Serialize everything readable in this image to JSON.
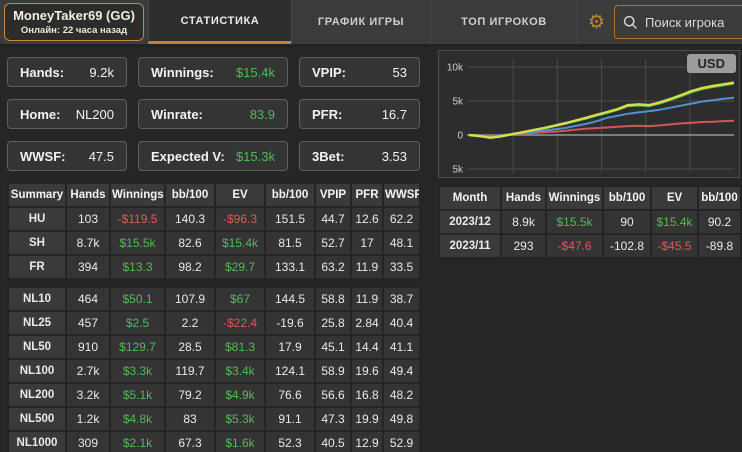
{
  "colors": {
    "accent_orange": "#c8802f",
    "positive_green": "#57b75c",
    "negative_red": "#dd5b5b"
  },
  "header": {
    "player": {
      "name": "MoneyTaker69 (GG)",
      "online": "Онлайн: 22 часа назад"
    },
    "tabs": [
      {
        "label": "СТАТИСТИКА",
        "active": true
      },
      {
        "label": "ГРАФИК ИГРЫ",
        "active": false
      },
      {
        "label": "ТОП ИГРОКОВ",
        "active": false
      }
    ],
    "search_placeholder": "Поиск игрока"
  },
  "stats": [
    {
      "label": "Hands:",
      "value": "9.2k"
    },
    {
      "label": "Winnings:",
      "value": "$15.4k",
      "color": "green"
    },
    {
      "label": "VPIP:",
      "value": "53"
    },
    {
      "label": "Home:",
      "value": "NL200"
    },
    {
      "label": "Winrate:",
      "value": "83.9",
      "color": "green"
    },
    {
      "label": "PFR:",
      "value": "16.7"
    },
    {
      "label": "WWSF:",
      "value": "47.5"
    },
    {
      "label": "Expected V:",
      "value": "$15.3k",
      "color": "green"
    },
    {
      "label": "3Bet:",
      "value": "3.53"
    }
  ],
  "summary_table": {
    "headers": [
      "Summary",
      "Hands",
      "Winnings",
      "bb/100",
      "EV",
      "bb/100",
      "VPIP",
      "PFR",
      "WWSF"
    ],
    "rows": [
      {
        "cells": [
          "HU",
          "103",
          "-$119.5",
          "140.3",
          "-$96.3",
          "151.5",
          "44.7",
          "12.6",
          "62.2"
        ]
      },
      {
        "cells": [
          "SH",
          "8.7k",
          "$15.5k",
          "82.6",
          "$15.4k",
          "81.5",
          "52.7",
          "17",
          "48.1"
        ]
      },
      {
        "cells": [
          "FR",
          "394",
          "$13.3",
          "98.2",
          "$29.7",
          "133.1",
          "63.2",
          "11.9",
          "33.5"
        ]
      }
    ]
  },
  "stakes_table": {
    "headers": null,
    "rows": [
      {
        "cells": [
          "NL10",
          "464",
          "$50.1",
          "107.9",
          "$67",
          "144.5",
          "58.8",
          "11.9",
          "38.7"
        ]
      },
      {
        "cells": [
          "NL25",
          "457",
          "$2.5",
          "2.2",
          "-$22.4",
          "-19.6",
          "25.8",
          "2.84",
          "40.4"
        ]
      },
      {
        "cells": [
          "NL50",
          "910",
          "$129.7",
          "28.5",
          "$81.3",
          "17.9",
          "45.1",
          "14.4",
          "41.1"
        ]
      },
      {
        "cells": [
          "NL100",
          "2.7k",
          "$3.3k",
          "119.7",
          "$3.4k",
          "124.1",
          "58.9",
          "19.6",
          "49.4"
        ]
      },
      {
        "cells": [
          "NL200",
          "3.2k",
          "$5.1k",
          "79.2",
          "$4.9k",
          "76.6",
          "56.6",
          "16.8",
          "48.2"
        ]
      },
      {
        "cells": [
          "NL500",
          "1.2k",
          "$4.8k",
          "83",
          "$5.3k",
          "91.1",
          "47.3",
          "19.9",
          "49.8"
        ]
      },
      {
        "cells": [
          "NL1000",
          "309",
          "$2.1k",
          "67.3",
          "$1.6k",
          "52.3",
          "40.5",
          "12.9",
          "52.9"
        ]
      }
    ]
  },
  "months_table": {
    "headers": [
      "Month",
      "Hands",
      "Winnings",
      "bb/100",
      "EV",
      "bb/100"
    ],
    "rows": [
      {
        "cells": [
          "2023/12",
          "8.9k",
          "$15.5k",
          "90",
          "$15.4k",
          "90.2"
        ]
      },
      {
        "cells": [
          "2023/11",
          "293",
          "-$47.6",
          "-102.8",
          "-$45.5",
          "-89.8"
        ]
      }
    ]
  },
  "chart": {
    "currency_label": "USD"
  },
  "chart_data": {
    "type": "line",
    "title": "",
    "unit": "USD",
    "ylim": [
      -5000,
      10000
    ],
    "y_ticks": [
      10000,
      5000,
      0,
      -5000
    ],
    "y_tick_labels": [
      "10k",
      "5k",
      "0",
      "5k"
    ],
    "x_axis": "cumulative progression (0-100%), no tick labels shown",
    "grid": true,
    "legend": "none",
    "x": [
      0,
      4,
      8,
      12,
      16,
      20,
      24,
      28,
      32,
      36,
      40,
      44,
      48,
      52,
      56,
      60,
      64,
      68,
      72,
      76,
      80,
      84,
      88,
      92,
      96,
      100
    ],
    "series": [
      {
        "name": "red-line",
        "color": "#d25757",
        "width": 2,
        "y": [
          0,
          -60,
          -160,
          -20,
          90,
          190,
          290,
          390,
          490,
          600,
          760,
          910,
          1010,
          1110,
          1210,
          1310,
          1360,
          1310,
          1410,
          1560,
          1710,
          1810,
          1910,
          1960,
          2040,
          2100
        ]
      },
      {
        "name": "blue-line",
        "color": "#5090d3",
        "width": 2,
        "y": [
          0,
          -120,
          -220,
          -60,
          80,
          240,
          420,
          620,
          820,
          1020,
          1320,
          1620,
          2020,
          2520,
          2820,
          3120,
          3320,
          3520,
          3720,
          4020,
          4320,
          4620,
          4920,
          5120,
          5320,
          5480
        ]
      },
      {
        "name": "green-line",
        "color": "#4da852",
        "width": 2,
        "y": [
          0,
          -220,
          -380,
          -180,
          30,
          330,
          630,
          930,
          1260,
          1600,
          2000,
          2380,
          2820,
          3200,
          3680,
          4230,
          4320,
          4230,
          4630,
          5130,
          5680,
          6280,
          6730,
          7030,
          7280,
          7560
        ]
      },
      {
        "name": "yellow-line",
        "color": "#d3df4a",
        "width": 2.5,
        "y": [
          0,
          -150,
          -400,
          -200,
          100,
          400,
          700,
          1000,
          1350,
          1700,
          2100,
          2500,
          2950,
          3350,
          3800,
          4400,
          4500,
          4400,
          4800,
          5300,
          5850,
          6450,
          6900,
          7200,
          7450,
          7700
        ]
      }
    ]
  }
}
